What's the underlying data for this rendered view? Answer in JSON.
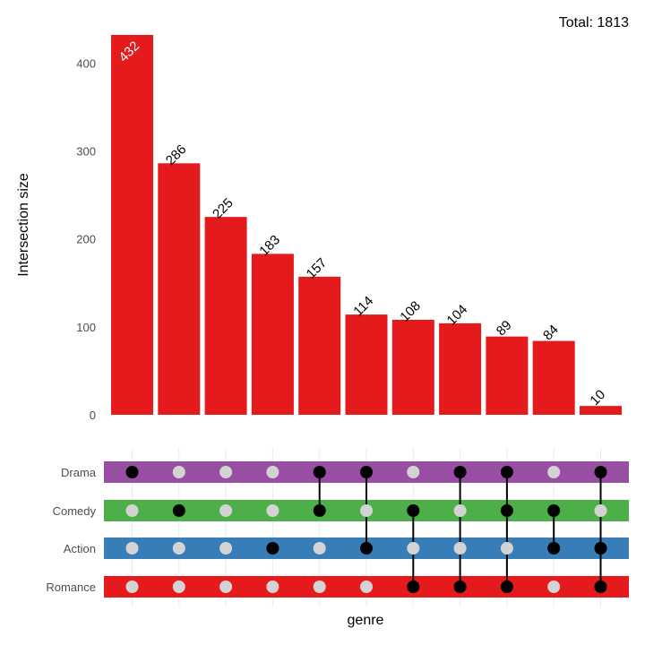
{
  "chart_data": {
    "type": "upset",
    "total_label": "Total: 1813",
    "ylabel": "Intersection size",
    "xlabel": "genre",
    "ylim": [
      0,
      432
    ],
    "yticks": [
      0,
      100,
      200,
      300,
      400
    ],
    "bar_color": "#e41a1c",
    "sets": [
      {
        "name": "Drama",
        "color": "#984ea3"
      },
      {
        "name": "Comedy",
        "color": "#4daf4a"
      },
      {
        "name": "Action",
        "color": "#377eb8"
      },
      {
        "name": "Romance",
        "color": "#e41a1c"
      }
    ],
    "intersections": [
      {
        "value": 432,
        "sets": [
          "Drama"
        ]
      },
      {
        "value": 286,
        "sets": [
          "Comedy"
        ]
      },
      {
        "value": 225,
        "sets": []
      },
      {
        "value": 183,
        "sets": [
          "Action"
        ]
      },
      {
        "value": 157,
        "sets": [
          "Drama",
          "Comedy"
        ]
      },
      {
        "value": 114,
        "sets": [
          "Drama",
          "Action"
        ]
      },
      {
        "value": 108,
        "sets": [
          "Comedy",
          "Romance"
        ]
      },
      {
        "value": 104,
        "sets": [
          "Drama",
          "Romance"
        ]
      },
      {
        "value": 89,
        "sets": [
          "Drama",
          "Comedy",
          "Romance"
        ]
      },
      {
        "value": 84,
        "sets": [
          "Comedy",
          "Action"
        ]
      },
      {
        "value": 10,
        "sets": [
          "Drama",
          "Action",
          "Romance"
        ]
      }
    ]
  }
}
